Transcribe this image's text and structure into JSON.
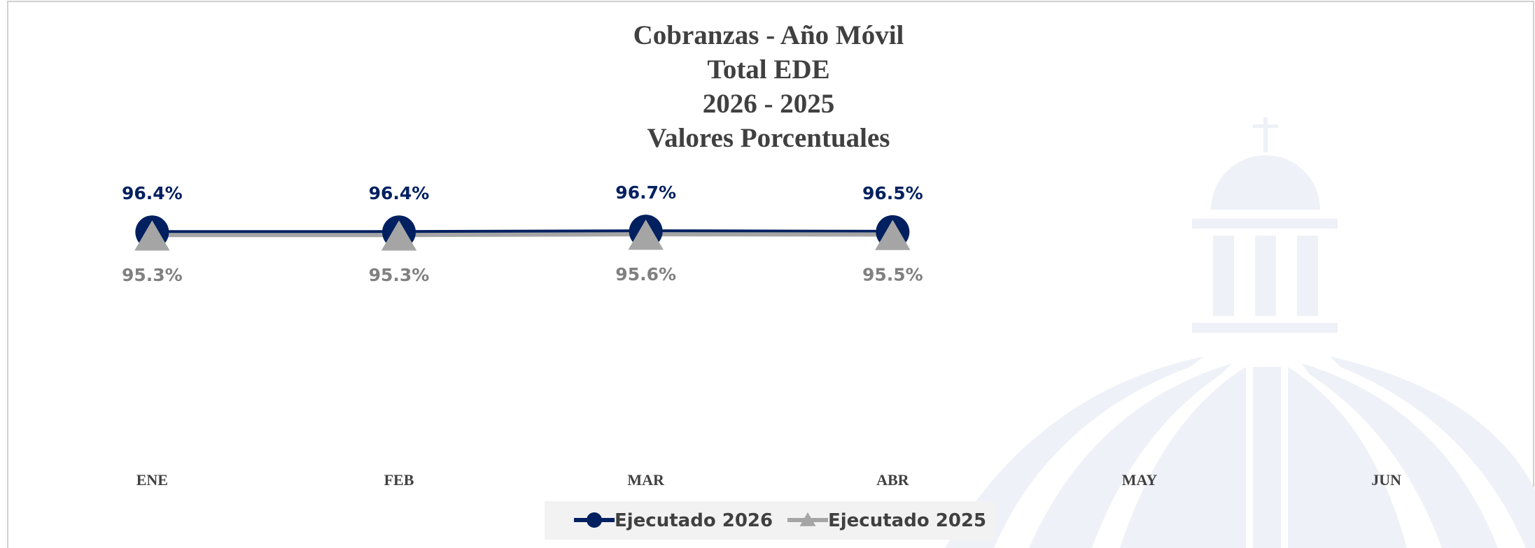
{
  "chart_data": {
    "type": "line",
    "title": [
      "Cobranzas - Año Móvil",
      "Total EDE",
      "2026 - 2025",
      "Valores Porcentuales"
    ],
    "categories": [
      "ENE",
      "FEB",
      "MAR",
      "ABR",
      "MAY",
      "JUN"
    ],
    "series": [
      {
        "name": "Ejecutado 2026",
        "color": "#002060",
        "marker": "circle",
        "values": [
          96.4,
          96.4,
          96.7,
          96.5,
          null,
          null
        ],
        "value_labels": [
          "96.4%",
          "96.4%",
          "96.7%",
          "96.5%",
          null,
          null
        ]
      },
      {
        "name": "Ejecutado 2025",
        "color": "#a5a5a5",
        "marker": "triangle",
        "values": [
          95.3,
          95.3,
          95.6,
          95.5,
          null,
          null
        ],
        "value_labels": [
          "95.3%",
          "95.3%",
          "95.6%",
          "95.5%",
          null,
          null
        ]
      }
    ],
    "ylim": [
      0,
      100
    ],
    "grid": false,
    "legend": "bottom"
  }
}
